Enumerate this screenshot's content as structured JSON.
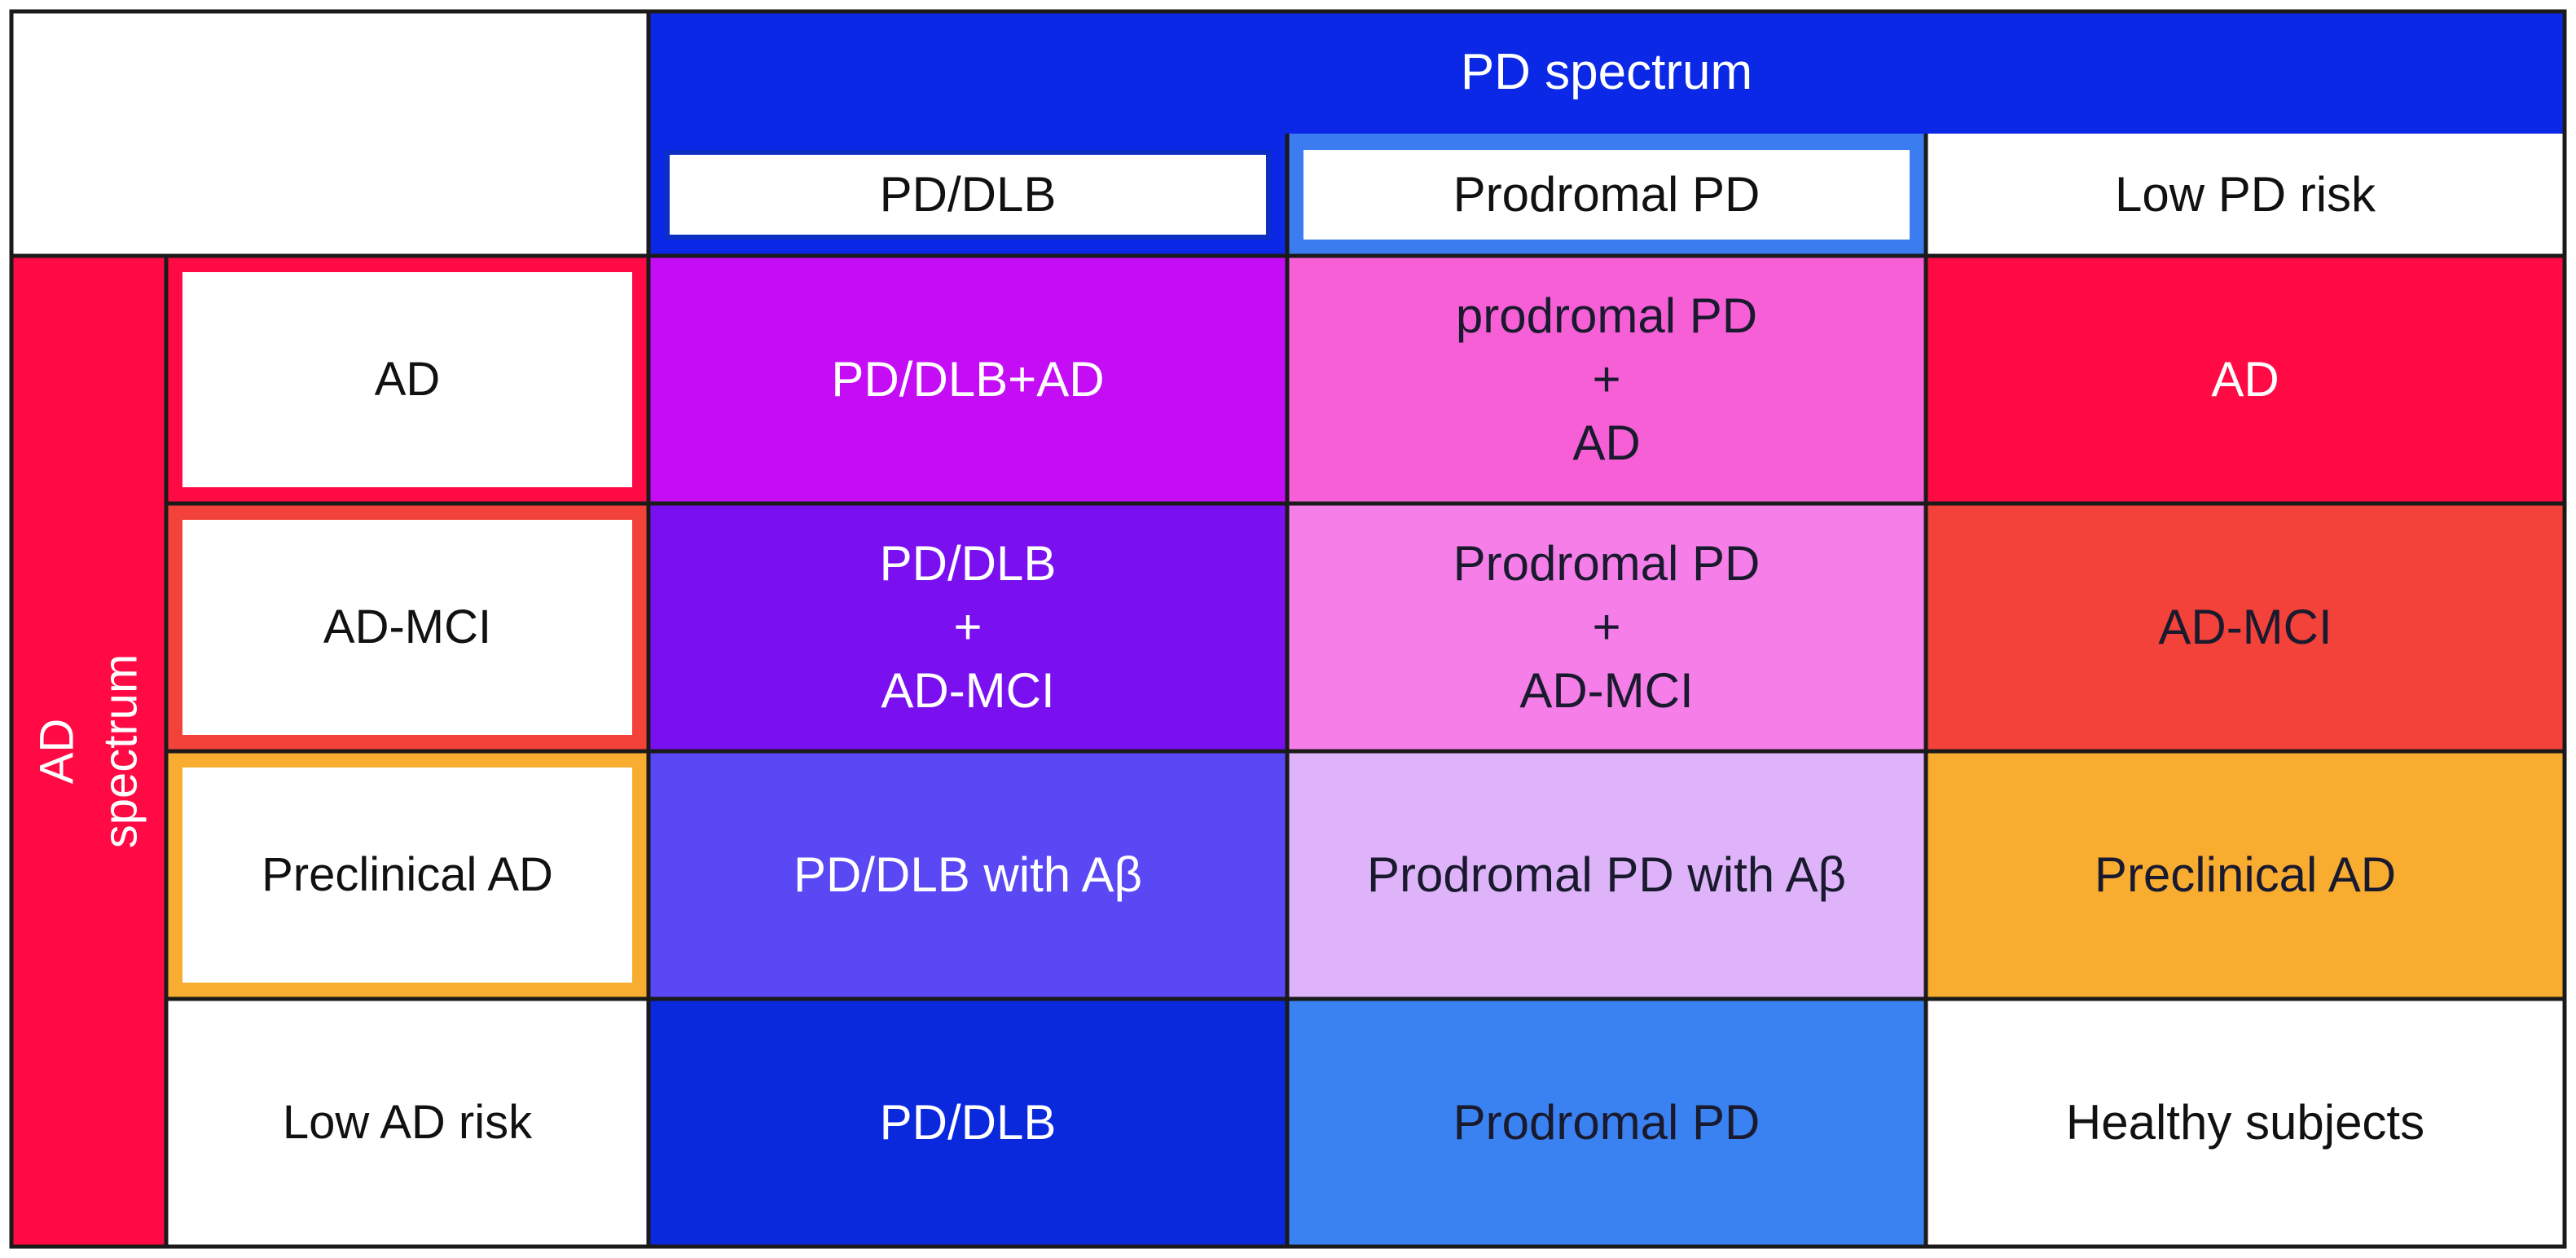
{
  "pd_spectrum": {
    "label": "PD spectrum",
    "color": "#0a28e6",
    "columns": [
      {
        "label": "PD/DLB",
        "border": "#0d2ec4"
      },
      {
        "label": "Prodromal PD",
        "border": "#3b7cf0"
      },
      {
        "label": "Low PD risk",
        "border": "none"
      }
    ]
  },
  "ad_spectrum": {
    "label": "AD spectrum",
    "color": "#ff0a44",
    "rows": [
      {
        "label": "AD",
        "border": "#ff0a44"
      },
      {
        "label": "AD-MCI",
        "border": "#f2423a"
      },
      {
        "label": "Preclinical AD",
        "border": "#f8ad30"
      },
      {
        "label": "Low AD risk",
        "border": "none"
      }
    ]
  },
  "matrix": [
    [
      {
        "text": "PD/DLB+AD",
        "bg": "#c40cf5",
        "fg": "#ffffff"
      },
      {
        "text": "prodromal PD\n+\nAD",
        "bg": "#f75fd6",
        "fg": "#1a1a2e"
      },
      {
        "text": "AD",
        "bg": "#ff0a44",
        "fg": "#ffffff"
      }
    ],
    [
      {
        "text": "PD/DLB\n+\nAD-MCI",
        "bg": "#7a10f0",
        "fg": "#ffffff"
      },
      {
        "text": "Prodromal PD\n+\nAD-MCI",
        "bg": "#f57ee8",
        "fg": "#1a1a2e"
      },
      {
        "text": "AD-MCI",
        "bg": "#f2423a",
        "fg": "#1a1a2e"
      }
    ],
    [
      {
        "text": "PD/DLB with Aβ",
        "bg": "#5a48f5",
        "fg": "#ffffff"
      },
      {
        "text": "Prodromal PD with Aβ",
        "bg": "#deb3fa",
        "fg": "#1a1a2e"
      },
      {
        "text": "Preclinical AD",
        "bg": "#f8ad30",
        "fg": "#1a1a2e"
      }
    ],
    [
      {
        "text": "PD/DLB",
        "bg": "#0a28dc",
        "fg": "#ffffff"
      },
      {
        "text": "Prodromal PD",
        "bg": "#3a82f2",
        "fg": "#1a1a2e"
      },
      {
        "text": "Healthy subjects",
        "bg": "#ffffff",
        "fg": "#111111"
      }
    ]
  ]
}
